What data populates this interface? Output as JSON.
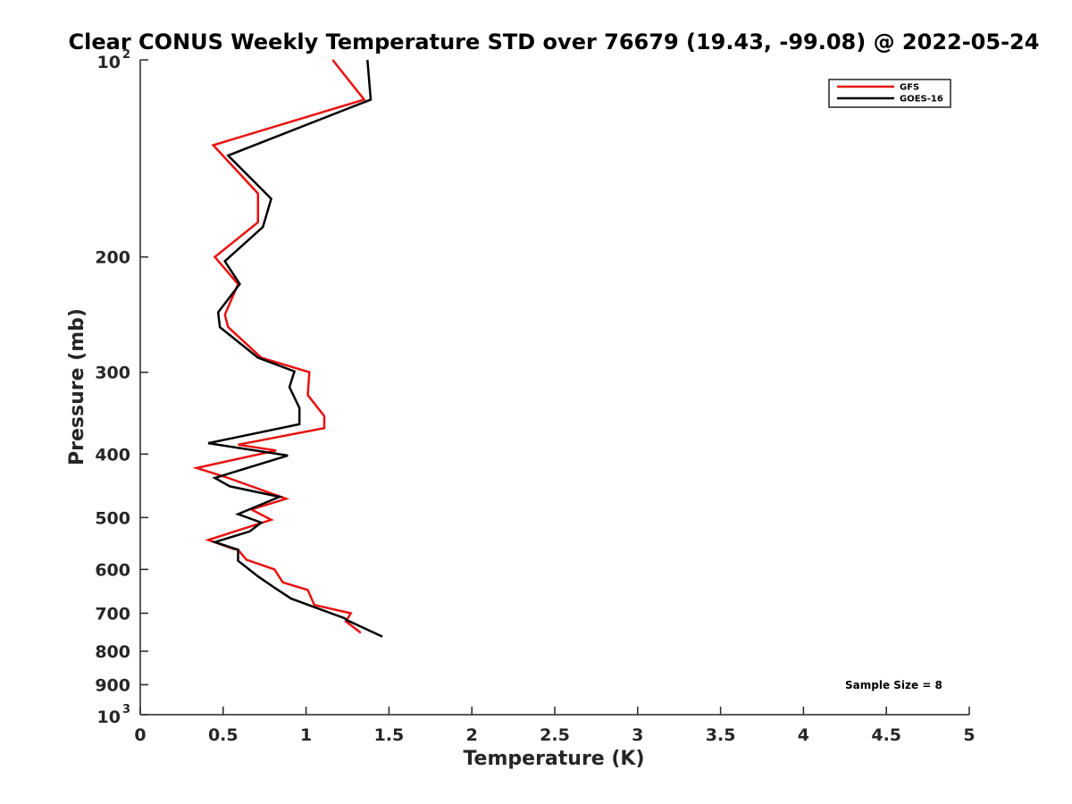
{
  "chart_data": {
    "type": "line",
    "title": "Clear CONUS Weekly Temperature STD over 76679 (19.43, -99.08) @ 2022-05-24",
    "xlabel": "Temperature (K)",
    "ylabel": "Pressure (mb)",
    "xlim": [
      0,
      5
    ],
    "ylim": [
      100,
      1000
    ],
    "y_scale": "log",
    "y_reversed": true,
    "x_ticks": [
      "0",
      "0.5",
      "1",
      "1.5",
      "2",
      "2.5",
      "3",
      "3.5",
      "4",
      "4.5",
      "5"
    ],
    "y_ticks": [
      {
        "value": 100,
        "base": "10",
        "exp": "2"
      },
      {
        "value": 200,
        "label": "200"
      },
      {
        "value": 300,
        "label": "300"
      },
      {
        "value": 400,
        "label": "400"
      },
      {
        "value": 500,
        "label": "500"
      },
      {
        "value": 600,
        "label": "600"
      },
      {
        "value": 700,
        "label": "700"
      },
      {
        "value": 800,
        "label": "800"
      },
      {
        "value": 900,
        "label": "900"
      },
      {
        "value": 1000,
        "base": "10",
        "exp": "3"
      }
    ],
    "legend_position": "top-right",
    "grid": false,
    "annotation": "Sample Size = 8",
    "series": [
      {
        "name": "GFS",
        "color": "#e8100f",
        "points": [
          [
            1.16,
            100
          ],
          [
            1.35,
            115
          ],
          [
            0.44,
            135
          ],
          [
            0.71,
            160
          ],
          [
            0.71,
            177
          ],
          [
            0.45,
            200
          ],
          [
            0.59,
            220
          ],
          [
            0.51,
            245
          ],
          [
            0.53,
            256
          ],
          [
            0.73,
            285
          ],
          [
            1.02,
            300
          ],
          [
            1.01,
            325
          ],
          [
            1.11,
            350
          ],
          [
            1.11,
            365
          ],
          [
            0.59,
            387
          ],
          [
            0.82,
            395
          ],
          [
            0.34,
            420
          ],
          [
            0.53,
            435
          ],
          [
            0.88,
            468
          ],
          [
            0.67,
            486
          ],
          [
            0.79,
            504
          ],
          [
            0.41,
            541
          ],
          [
            0.56,
            558
          ],
          [
            0.59,
            560
          ],
          [
            0.64,
            580
          ],
          [
            0.81,
            600
          ],
          [
            0.86,
            628
          ],
          [
            1.01,
            645
          ],
          [
            1.05,
            680
          ],
          [
            1.27,
            700
          ],
          [
            1.24,
            720
          ],
          [
            1.33,
            750
          ]
        ]
      },
      {
        "name": "GOES-16",
        "color": "#000000",
        "points": [
          [
            1.37,
            100
          ],
          [
            1.39,
            115
          ],
          [
            0.53,
            140
          ],
          [
            0.79,
            163
          ],
          [
            0.74,
            180
          ],
          [
            0.51,
            203
          ],
          [
            0.6,
            220
          ],
          [
            0.47,
            243
          ],
          [
            0.48,
            256
          ],
          [
            0.71,
            285
          ],
          [
            0.93,
            299
          ],
          [
            0.9,
            316
          ],
          [
            0.96,
            340
          ],
          [
            0.96,
            360
          ],
          [
            0.41,
            385
          ],
          [
            0.89,
            402
          ],
          [
            0.45,
            435
          ],
          [
            0.54,
            448
          ],
          [
            0.84,
            465
          ],
          [
            0.59,
            494
          ],
          [
            0.73,
            509
          ],
          [
            0.66,
            525
          ],
          [
            0.45,
            545
          ],
          [
            0.59,
            560
          ],
          [
            0.59,
            582
          ],
          [
            0.71,
            615
          ],
          [
            0.81,
            640
          ],
          [
            0.91,
            665
          ],
          [
            1.23,
            712
          ],
          [
            1.25,
            718
          ],
          [
            1.46,
            760
          ]
        ]
      }
    ]
  }
}
